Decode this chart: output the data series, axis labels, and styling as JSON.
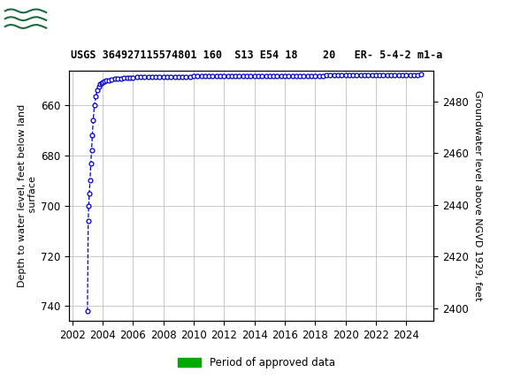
{
  "title": "USGS 364927115574801 160  S13 E54 18    20   ER- 5-4-2 m1-a",
  "ylabel_left": "Depth to water level, feet below land\n surface",
  "ylabel_right": "Groundwater level above NGVD 1929, feet",
  "ylim_left": [
    746,
    646
  ],
  "ylim_right": [
    2395,
    2492
  ],
  "xlim": [
    2001.8,
    2025.8
  ],
  "yticks_left": [
    740,
    720,
    700,
    680,
    660
  ],
  "yticks_right": [
    2400,
    2420,
    2440,
    2460,
    2480
  ],
  "xticks": [
    2002,
    2004,
    2006,
    2008,
    2010,
    2012,
    2014,
    2016,
    2018,
    2020,
    2022,
    2024
  ],
  "header_color": "#1a6b3c",
  "line_color": "#0000cc",
  "grid_color": "#c0c0c0",
  "bg_color": "#ffffff",
  "legend_label": "Period of approved data",
  "legend_color": "#00aa00",
  "data_x": [
    2003.0,
    2003.05,
    2003.08,
    2003.12,
    2003.17,
    2003.22,
    2003.27,
    2003.32,
    2003.38,
    2003.45,
    2003.55,
    2003.65,
    2003.75,
    2003.85,
    2003.95,
    2004.0,
    2004.1,
    2004.25,
    2004.4,
    2004.6,
    2004.8,
    2005.0,
    2005.2,
    2005.4,
    2005.6,
    2005.8,
    2006.0,
    2006.25,
    2006.5,
    2006.75,
    2007.0,
    2007.25,
    2007.5,
    2007.75,
    2008.0,
    2008.25,
    2008.5,
    2008.75,
    2009.0,
    2009.25,
    2009.5,
    2009.75,
    2010.0,
    2010.25,
    2010.5,
    2010.75,
    2011.0,
    2011.25,
    2011.5,
    2011.75,
    2012.0,
    2012.25,
    2012.5,
    2012.75,
    2013.0,
    2013.25,
    2013.5,
    2013.75,
    2014.0,
    2014.25,
    2014.5,
    2014.75,
    2015.0,
    2015.25,
    2015.5,
    2015.75,
    2016.0,
    2016.25,
    2016.5,
    2016.75,
    2017.0,
    2017.25,
    2017.5,
    2017.75,
    2018.0,
    2018.25,
    2018.5,
    2018.75,
    2019.0,
    2019.25,
    2019.5,
    2019.75,
    2020.0,
    2020.25,
    2020.5,
    2020.75,
    2021.0,
    2021.25,
    2021.5,
    2021.75,
    2022.0,
    2022.25,
    2022.5,
    2022.75,
    2023.0,
    2023.25,
    2023.5,
    2023.75,
    2024.0,
    2024.25,
    2024.5,
    2024.75,
    2025.0
  ],
  "data_y": [
    742.0,
    706.0,
    700.0,
    695.0,
    690.0,
    683.0,
    678.0,
    672.0,
    666.0,
    660.0,
    656.5,
    654.0,
    652.5,
    651.5,
    651.0,
    650.7,
    650.4,
    650.1,
    649.9,
    649.7,
    649.5,
    649.3,
    649.2,
    649.1,
    649.0,
    648.9,
    648.85,
    648.8,
    648.75,
    648.7,
    648.65,
    648.62,
    648.6,
    648.58,
    648.55,
    648.53,
    648.51,
    648.5,
    648.48,
    648.47,
    648.46,
    648.45,
    648.44,
    648.43,
    648.42,
    648.41,
    648.4,
    648.39,
    648.38,
    648.37,
    648.36,
    648.35,
    648.34,
    648.33,
    648.32,
    648.31,
    648.3,
    648.29,
    648.28,
    648.27,
    648.26,
    648.25,
    648.24,
    648.23,
    648.22,
    648.21,
    648.2,
    648.19,
    648.18,
    648.17,
    648.16,
    648.15,
    648.14,
    648.13,
    648.12,
    648.11,
    648.1,
    648.09,
    648.08,
    648.07,
    648.06,
    648.05,
    648.04,
    648.03,
    648.02,
    648.01,
    648.0,
    647.99,
    647.98,
    647.97,
    647.96,
    647.95,
    647.94,
    647.93,
    647.92,
    647.91,
    647.9,
    647.89,
    647.88,
    647.87,
    647.86,
    647.85,
    647.5
  ]
}
